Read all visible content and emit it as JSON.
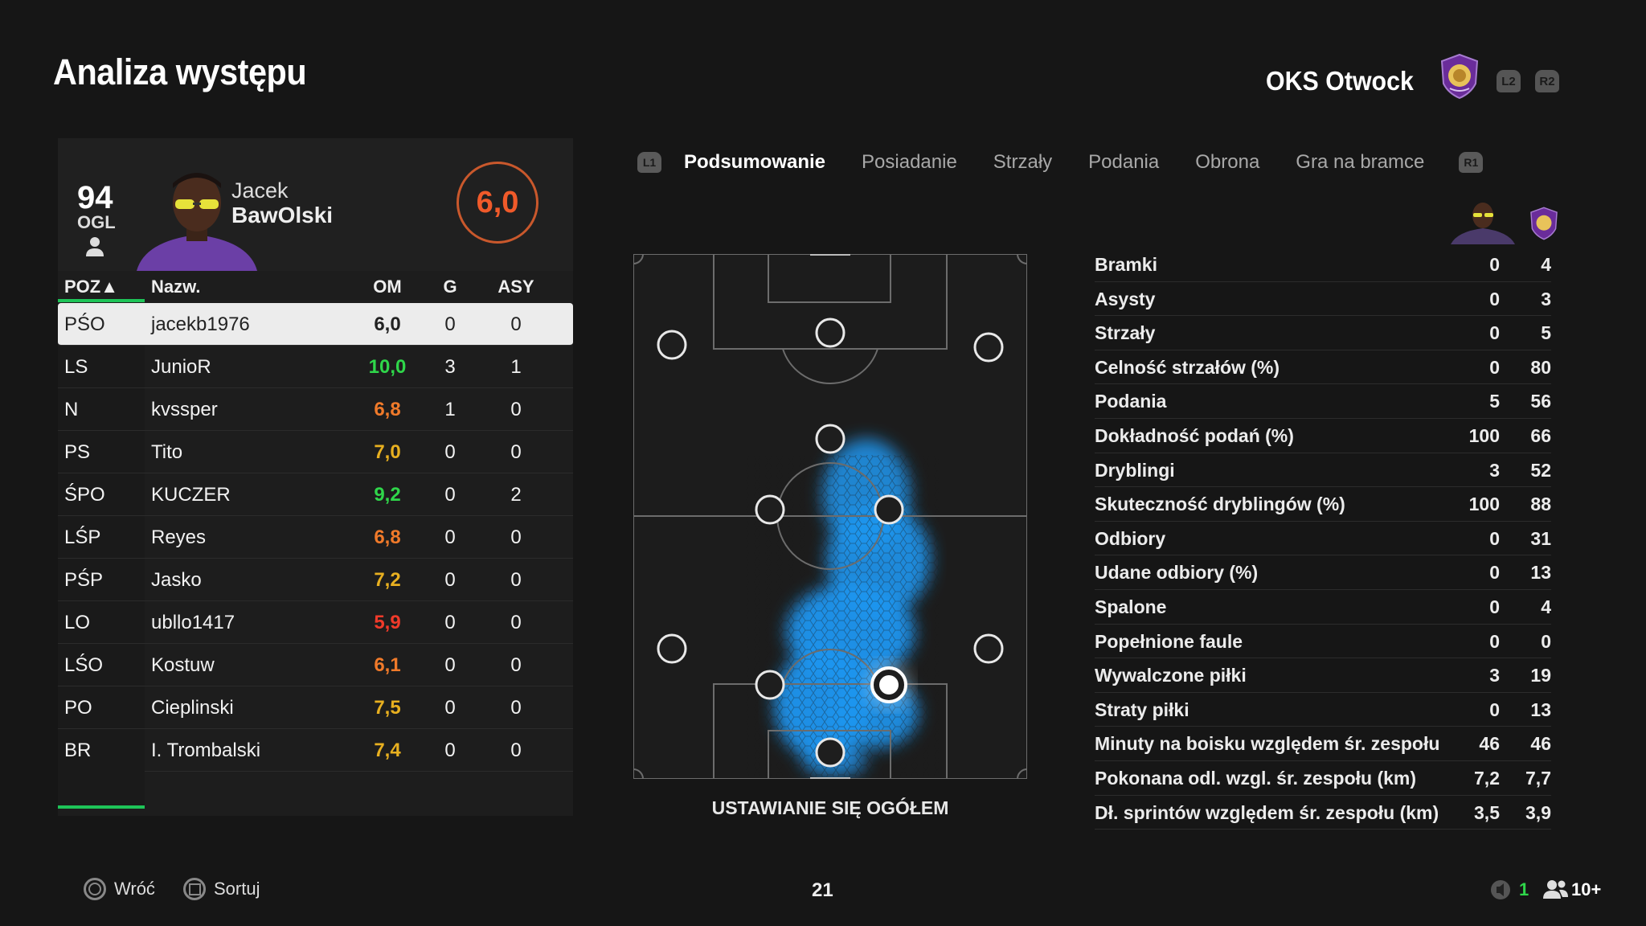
{
  "page_title": "Analiza występu",
  "team": {
    "name": "OKS Otwock",
    "crest_icon": "orlando-city-lion-crest",
    "buttons": [
      "L2",
      "R2"
    ]
  },
  "player": {
    "overall": "94",
    "overall_label": "OGL",
    "first_name": "Jacek",
    "last_name": "BawOlski",
    "match_rating": "6,0"
  },
  "table": {
    "headers": {
      "pos": "POZ▲",
      "name": "Nazw.",
      "om": "OM",
      "g": "G",
      "asy": "ASY"
    },
    "rows": [
      {
        "pos": "PŚO",
        "name": "jacekb1976",
        "om": "6,0",
        "g": "0",
        "asy": "0",
        "color": "#222222",
        "selected": true
      },
      {
        "pos": "LS",
        "name": "JunioR",
        "om": "10,0",
        "g": "3",
        "asy": "1",
        "color": "#2fd64a"
      },
      {
        "pos": "N",
        "name": "kvssper",
        "om": "6,8",
        "g": "1",
        "asy": "0",
        "color": "#f07a2a"
      },
      {
        "pos": "PS",
        "name": "Tito",
        "om": "7,0",
        "g": "0",
        "asy": "0",
        "color": "#e8b020"
      },
      {
        "pos": "ŚPO",
        "name": "KUCZER",
        "om": "9,2",
        "g": "0",
        "asy": "2",
        "color": "#2fd64a"
      },
      {
        "pos": "LŚP",
        "name": "Reyes",
        "om": "6,8",
        "g": "0",
        "asy": "0",
        "color": "#f07a2a"
      },
      {
        "pos": "PŚP",
        "name": "Jasko",
        "om": "7,2",
        "g": "0",
        "asy": "0",
        "color": "#e8b020"
      },
      {
        "pos": "LO",
        "name": "ubllo1417",
        "om": "5,9",
        "g": "0",
        "asy": "0",
        "color": "#f03a2a"
      },
      {
        "pos": "LŚO",
        "name": "Kostuw",
        "om": "6,1",
        "g": "0",
        "asy": "0",
        "color": "#f07a2a"
      },
      {
        "pos": "PO",
        "name": "Cieplinski",
        "om": "7,5",
        "g": "0",
        "asy": "0",
        "color": "#e8b020"
      },
      {
        "pos": "BR",
        "name": "I. Trombalski",
        "om": "7,4",
        "g": "0",
        "asy": "0",
        "color": "#e8b020"
      }
    ]
  },
  "tabs": {
    "left_key": "L1",
    "right_key": "R1",
    "items": [
      "Podsumowanie",
      "Posiadanie",
      "Strzały",
      "Podania",
      "Obrona",
      "Gra na bramce"
    ],
    "active": 0
  },
  "pitch": {
    "caption": "USTAWIANIE SIĘ OGÓŁEM"
  },
  "stats": [
    {
      "label": "Bramki",
      "player": "0",
      "team": "4"
    },
    {
      "label": "Asysty",
      "player": "0",
      "team": "3"
    },
    {
      "label": "Strzały",
      "player": "0",
      "team": "5"
    },
    {
      "label": "Celność strzałów (%)",
      "player": "0",
      "team": "80"
    },
    {
      "label": "Podania",
      "player": "5",
      "team": "56"
    },
    {
      "label": "Dokładność podań (%)",
      "player": "100",
      "team": "66"
    },
    {
      "label": "Dryblingi",
      "player": "3",
      "team": "52"
    },
    {
      "label": "Skuteczność dryblingów (%)",
      "player": "100",
      "team": "88"
    },
    {
      "label": "Odbiory",
      "player": "0",
      "team": "31"
    },
    {
      "label": "Udane odbiory (%)",
      "player": "0",
      "team": "13"
    },
    {
      "label": "Spalone",
      "player": "0",
      "team": "4"
    },
    {
      "label": "Popełnione faule",
      "player": "0",
      "team": "0"
    },
    {
      "label": "Wywalczone piłki",
      "player": "3",
      "team": "19"
    },
    {
      "label": "Straty piłki",
      "player": "0",
      "team": "13"
    },
    {
      "label": "Minuty na boisku względem śr. zespołu",
      "player": "46",
      "team": "46"
    },
    {
      "label": "Pokonana odl. wzgl. śr. zespołu (km)",
      "player": "7,2",
      "team": "7,7"
    },
    {
      "label": "Dł. sprintów względem śr. zespołu (km)",
      "player": "3,5",
      "team": "3,9"
    }
  ],
  "footer": {
    "back": "Wróć",
    "sort": "Sortuj",
    "center_number": "21",
    "mic_count": "1",
    "players_count": "10+"
  }
}
